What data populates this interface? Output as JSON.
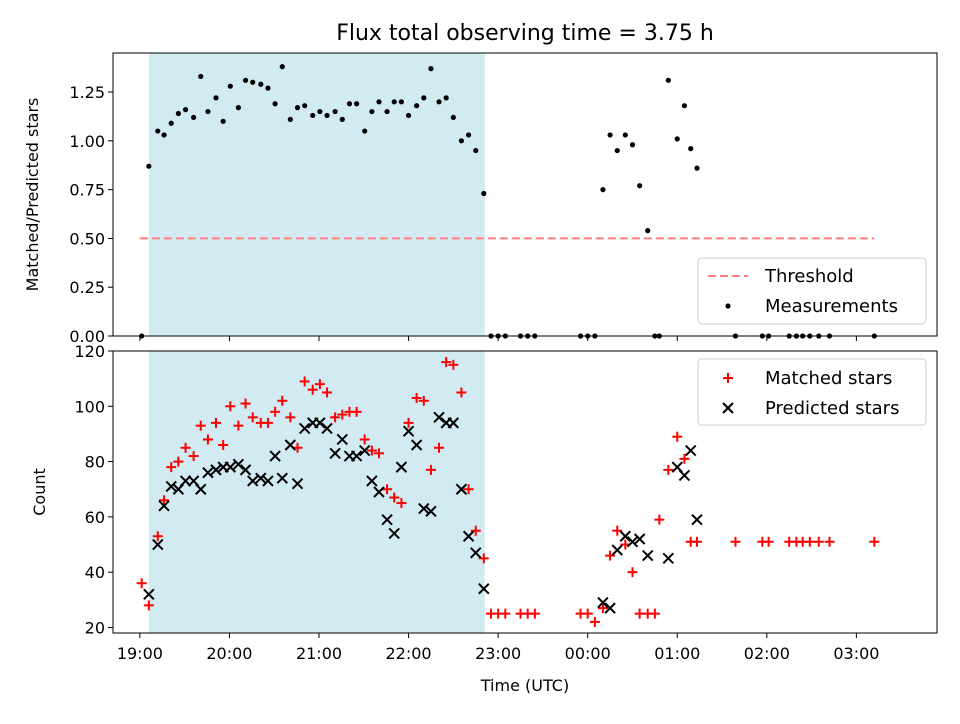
{
  "title": "Flux total observing time = 3.75 h",
  "colors": {
    "shade": "#add8e6",
    "threshold": "#ff7f7f",
    "measurement": "#000000",
    "matched": "#ff0000",
    "predicted": "#000000"
  },
  "chart_data": [
    {
      "type": "scatter",
      "ylabel": "Matched/Predicted stars",
      "xlabel": "",
      "ylim": [
        0,
        1.45
      ],
      "yticks": [
        "0.00",
        "0.25",
        "0.50",
        "0.75",
        "1.00",
        "1.25"
      ],
      "ytick_values": [
        0,
        0.25,
        0.5,
        0.75,
        1.0,
        1.25
      ],
      "xlim_hours": [
        18.7,
        27.9
      ],
      "xtick_positions_hours": [
        19,
        20,
        21,
        22,
        23,
        24,
        25,
        26,
        27
      ],
      "shaded_span_hours": [
        19.1,
        22.85
      ],
      "legend": {
        "position": "lower-right",
        "entries": [
          "Threshold",
          "Measurements"
        ]
      },
      "threshold": {
        "name": "Threshold",
        "value": 0.5,
        "x_hours": [
          19.0,
          27.2
        ]
      },
      "series": [
        {
          "name": "Measurements",
          "x_hours": [
            19.02,
            19.1,
            19.2,
            19.27,
            19.35,
            19.43,
            19.51,
            19.6,
            19.68,
            19.76,
            19.85,
            19.93,
            20.01,
            20.1,
            20.18,
            20.26,
            20.35,
            20.43,
            20.51,
            20.59,
            20.68,
            20.76,
            20.84,
            20.93,
            21.01,
            21.09,
            21.18,
            21.26,
            21.34,
            21.42,
            21.51,
            21.59,
            21.67,
            21.76,
            21.84,
            21.92,
            22.0,
            22.09,
            22.17,
            22.25,
            22.34,
            22.42,
            22.5,
            22.59,
            22.67,
            22.75,
            22.84,
            22.92,
            23.0,
            23.08,
            23.25,
            23.33,
            23.41,
            23.92,
            24.0,
            24.08,
            24.17,
            24.25,
            24.33,
            24.42,
            24.5,
            24.58,
            24.67,
            24.75,
            24.8,
            24.9,
            25.0,
            25.08,
            25.15,
            25.22,
            25.65,
            25.95,
            26.02,
            26.25,
            26.33,
            26.4,
            26.48,
            26.58,
            26.7,
            27.2
          ],
          "y": [
            0.0,
            0.87,
            1.05,
            1.03,
            1.09,
            1.14,
            1.16,
            1.12,
            1.33,
            1.15,
            1.22,
            1.1,
            1.28,
            1.17,
            1.31,
            1.3,
            1.29,
            1.27,
            1.19,
            1.38,
            1.11,
            1.17,
            1.18,
            1.13,
            1.15,
            1.13,
            1.15,
            1.11,
            1.19,
            1.19,
            1.05,
            1.15,
            1.2,
            1.15,
            1.2,
            1.2,
            1.13,
            1.18,
            1.22,
            1.37,
            1.2,
            1.22,
            1.12,
            1.0,
            1.03,
            0.95,
            0.73,
            0.0,
            0.0,
            0.0,
            0.0,
            0.0,
            0.0,
            0.0,
            0.0,
            0.0,
            0.75,
            1.03,
            0.95,
            1.03,
            0.98,
            0.77,
            0.54,
            0.0,
            0.0,
            1.31,
            1.01,
            1.18,
            0.96,
            0.86,
            0.0,
            0.0,
            0.0,
            0.0,
            0.0,
            0.0,
            0.0,
            0.0,
            0.0,
            0.0
          ]
        }
      ]
    },
    {
      "type": "scatter",
      "ylabel": "Count",
      "xlabel": "Time (UTC)",
      "ylim": [
        18,
        120
      ],
      "yticks": [
        "20",
        "40",
        "60",
        "80",
        "100",
        "120"
      ],
      "ytick_values": [
        20,
        40,
        60,
        80,
        100,
        120
      ],
      "xticks": [
        "19:00",
        "20:00",
        "21:00",
        "22:00",
        "23:00",
        "00:00",
        "01:00",
        "02:00",
        "03:00"
      ],
      "xtick_positions_hours": [
        19,
        20,
        21,
        22,
        23,
        24,
        25,
        26,
        27
      ],
      "xlim_hours": [
        18.7,
        27.9
      ],
      "shaded_span_hours": [
        19.1,
        22.85
      ],
      "legend": {
        "position": "top-right",
        "entries": [
          "Matched stars",
          "Predicted stars"
        ]
      },
      "series": [
        {
          "name": "Matched stars",
          "x_hours": [
            19.02,
            19.1,
            19.2,
            19.27,
            19.35,
            19.43,
            19.51,
            19.6,
            19.68,
            19.76,
            19.85,
            19.93,
            20.01,
            20.1,
            20.18,
            20.26,
            20.35,
            20.43,
            20.51,
            20.59,
            20.68,
            20.76,
            20.84,
            20.93,
            21.01,
            21.09,
            21.18,
            21.26,
            21.34,
            21.42,
            21.51,
            21.59,
            21.67,
            21.76,
            21.84,
            21.92,
            22.0,
            22.09,
            22.17,
            22.25,
            22.34,
            22.42,
            22.5,
            22.59,
            22.67,
            22.75,
            22.84,
            22.92,
            23.0,
            23.08,
            23.25,
            23.33,
            23.41,
            23.92,
            24.0,
            24.08,
            24.17,
            24.25,
            24.33,
            24.42,
            24.5,
            24.58,
            24.67,
            24.75,
            24.8,
            24.9,
            25.0,
            25.08,
            25.15,
            25.22,
            25.65,
            25.95,
            26.02,
            26.25,
            26.33,
            26.4,
            26.48,
            26.58,
            26.7,
            27.2
          ],
          "y": [
            36,
            28,
            53,
            66,
            78,
            80,
            85,
            82,
            93,
            88,
            94,
            86,
            100,
            93,
            101,
            96,
            94,
            94,
            98,
            102,
            96,
            85,
            109,
            106,
            108,
            105,
            96,
            97,
            98,
            98,
            88,
            84,
            83,
            70,
            67,
            65,
            94,
            103,
            102,
            77,
            85,
            116,
            115,
            105,
            70,
            55,
            45,
            25,
            25,
            25,
            25,
            25,
            25,
            25,
            25,
            22,
            27,
            46,
            55,
            50,
            40,
            25,
            25,
            25,
            59,
            77,
            89,
            81,
            51,
            51,
            51,
            51,
            51,
            51,
            51,
            51,
            51,
            51,
            51,
            51
          ]
        },
        {
          "name": "Predicted stars",
          "x_hours": [
            19.1,
            19.2,
            19.27,
            19.35,
            19.43,
            19.51,
            19.6,
            19.68,
            19.76,
            19.85,
            19.93,
            20.01,
            20.1,
            20.18,
            20.26,
            20.35,
            20.43,
            20.51,
            20.59,
            20.68,
            20.76,
            20.84,
            20.93,
            21.01,
            21.09,
            21.18,
            21.26,
            21.34,
            21.42,
            21.51,
            21.59,
            21.67,
            21.76,
            21.84,
            21.92,
            22.0,
            22.09,
            22.17,
            22.25,
            22.34,
            22.42,
            22.5,
            22.59,
            22.67,
            22.75,
            22.84,
            24.17,
            24.25,
            24.33,
            24.42,
            24.5,
            24.58,
            24.67,
            24.9,
            25.0,
            25.08,
            25.15,
            25.22
          ],
          "y": [
            32,
            50,
            64,
            71,
            70,
            73,
            73,
            70,
            76,
            77,
            78,
            78,
            79,
            77,
            73,
            74,
            73,
            82,
            74,
            86,
            72,
            92,
            94,
            94,
            92,
            83,
            88,
            82,
            82,
            84,
            73,
            69,
            59,
            54,
            78,
            91,
            86,
            63,
            62,
            96,
            94,
            94,
            70,
            53,
            47,
            34,
            29,
            27,
            48,
            53,
            51,
            52,
            46,
            45,
            78,
            75,
            84,
            59
          ]
        }
      ]
    }
  ]
}
